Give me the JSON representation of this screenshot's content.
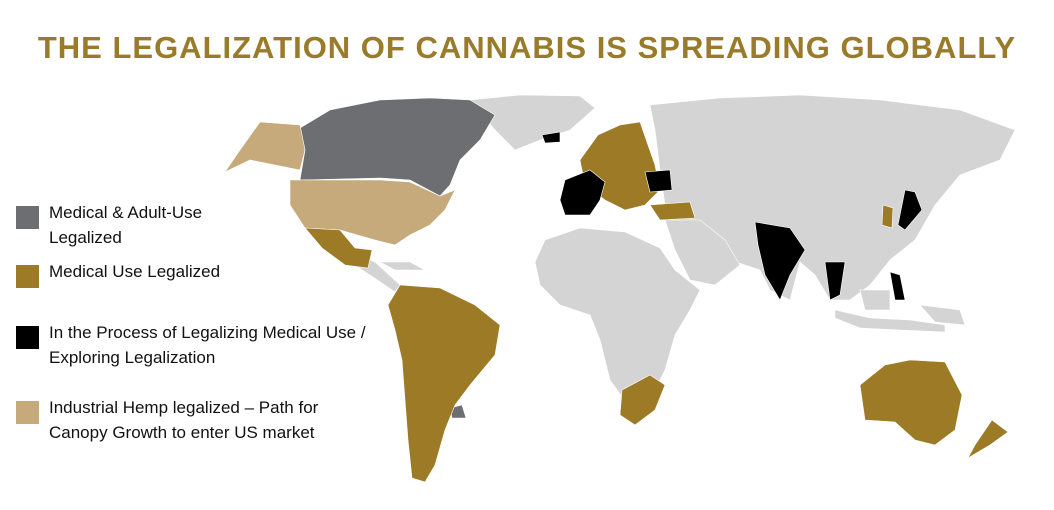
{
  "title": "THE LEGALIZATION OF CANNABIS IS SPREADING GLOBALLY",
  "colors": {
    "title": "#9a7b2a",
    "medical_adult_use": "#6d6e71",
    "medical_use": "#9c7a26",
    "in_process": "#000000",
    "industrial_hemp": "#c6aa7b",
    "no_status": "#d4d4d4"
  },
  "legend": [
    {
      "key": "medical_adult_use",
      "label": "Medical & Adult-Use Legalized"
    },
    {
      "key": "medical_use",
      "label": "Medical Use Legalized"
    },
    {
      "key": "in_process",
      "label": "In the Process of Legalizing Medical Use / Exploring Legalization"
    },
    {
      "key": "industrial_hemp",
      "label": "Industrial Hemp legalized – Path for Canopy Growth to enter US market"
    }
  ]
}
